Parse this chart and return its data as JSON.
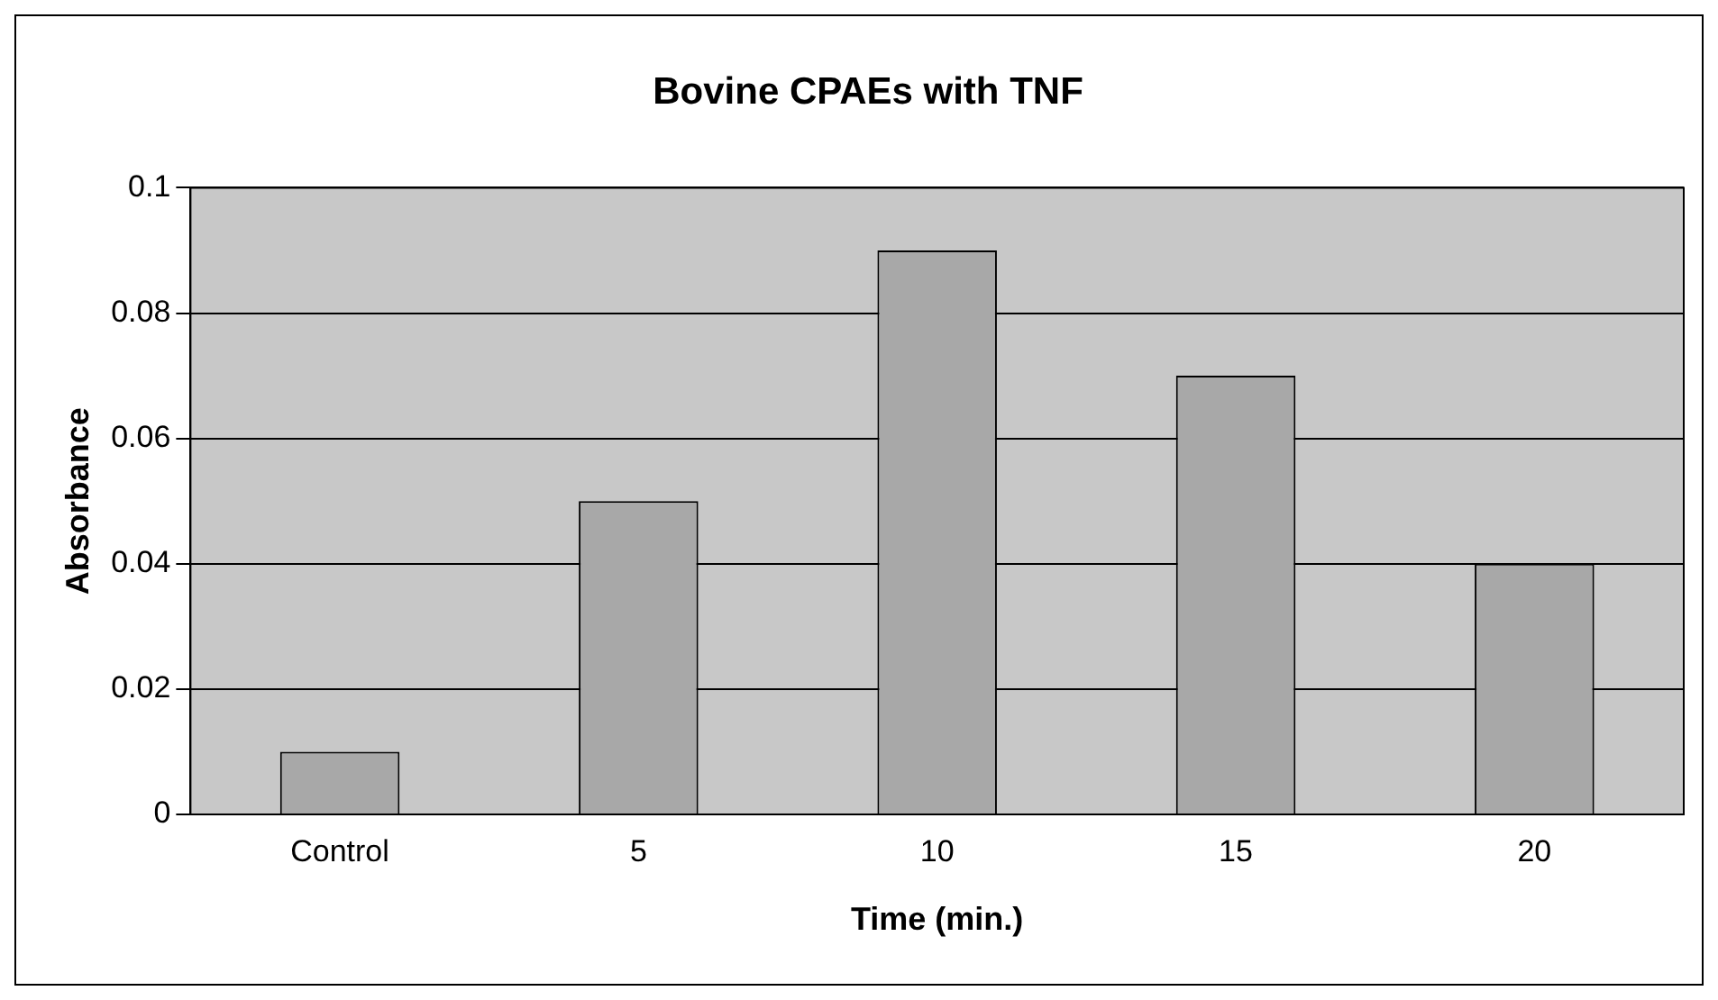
{
  "chart_data": {
    "type": "bar",
    "title": "Bovine CPAEs with TNF",
    "xlabel": "Time (min.)",
    "ylabel": "Absorbance",
    "categories": [
      "Control",
      "5",
      "10",
      "15",
      "20"
    ],
    "values": [
      0.01,
      0.05,
      0.09,
      0.07,
      0.04
    ],
    "color": "#a8a8a8",
    "ylim": [
      0,
      0.1
    ],
    "yticks": [
      0,
      0.02,
      0.04,
      0.06,
      0.08,
      0.1
    ],
    "grid": "y",
    "legend": false
  }
}
